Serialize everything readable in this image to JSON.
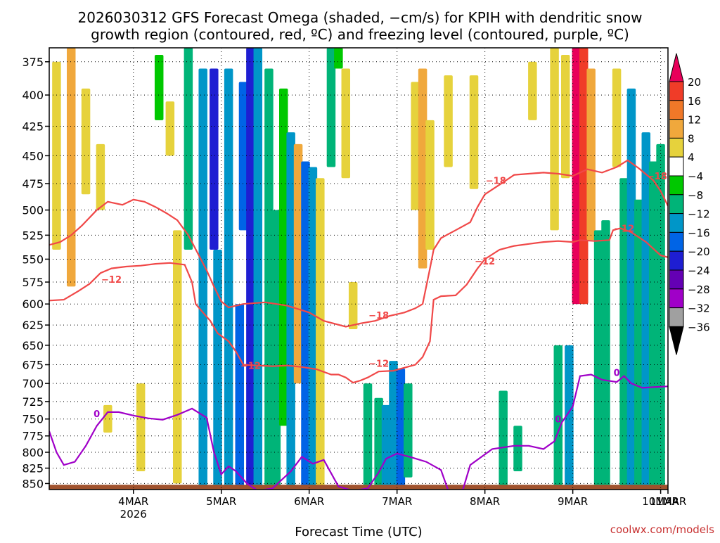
{
  "chart_data": {
    "type": "heatmap",
    "title": "2026030312 GFS Forecast Omega (shaded, −cm/s) for KPIH with dendritic snow",
    "subtitle": "growth region (contoured, red, ºC) and freezing level (contoured, purple, ºC)",
    "xlabel": "Forecast Time (UTC)",
    "ylabel": "",
    "credit": "coolwx.com/models",
    "y_axis": {
      "scale": "pressure",
      "range": [
        860,
        365
      ],
      "ticks": [
        "375",
        "400",
        "425",
        "450",
        "475",
        "500",
        "525",
        "550",
        "575",
        "600",
        "625",
        "650",
        "675",
        "700",
        "725",
        "750",
        "775",
        "800",
        "825",
        "850"
      ]
    },
    "x_axis": {
      "range_hours": [
        -11,
        158
      ],
      "ticks": [
        {
          "label": "4MAR",
          "sublabel": "2026",
          "hour": 12
        },
        {
          "label": "5MAR",
          "sublabel": "",
          "hour": 36
        },
        {
          "label": "6MAR",
          "sublabel": "",
          "hour": 60
        },
        {
          "label": "7MAR",
          "sublabel": "",
          "hour": 84
        },
        {
          "label": "8MAR",
          "sublabel": "",
          "hour": 108
        },
        {
          "label": "9MAR",
          "sublabel": "",
          "hour": 132
        },
        {
          "label": "10MAR",
          "sublabel": "",
          "hour": 156
        },
        {
          "label": "11MAR",
          "sublabel": "",
          "hour": 180
        }
      ]
    },
    "grid": true,
    "colorbar": {
      "labels": [
        "20",
        "16",
        "12",
        "8",
        "4",
        "−4",
        "−8",
        "−12",
        "−16",
        "−20",
        "−24",
        "−28",
        "−32",
        "−36"
      ],
      "colors": [
        "#e8005a",
        "#f03c28",
        "#f07828",
        "#f0a83c",
        "#e6d23c",
        "#ffffff",
        "#00c800",
        "#00b478",
        "#0096c8",
        "#0064e6",
        "#1e1ed2",
        "#6400b4",
        "#a000c8",
        "#a0a0a0",
        "#000000"
      ]
    },
    "omega_bands": [
      {
        "hour": -9,
        "top": 375,
        "bottom": 540,
        "value": 6
      },
      {
        "hour": -5,
        "top": 365,
        "bottom": 580,
        "value": 10
      },
      {
        "hour": -1,
        "top": 395,
        "bottom": 485,
        "value": 5
      },
      {
        "hour": 3,
        "top": 440,
        "bottom": 500,
        "value": 6
      },
      {
        "hour": 5,
        "top": 730,
        "bottom": 770,
        "value": 5
      },
      {
        "hour": 14,
        "top": 700,
        "bottom": 830,
        "value": 4
      },
      {
        "hour": 19,
        "top": 370,
        "bottom": 420,
        "value": -6
      },
      {
        "hour": 22,
        "top": 405,
        "bottom": 450,
        "value": 5
      },
      {
        "hour": 24,
        "top": 520,
        "bottom": 850,
        "value": 5
      },
      {
        "hour": 27,
        "top": 365,
        "bottom": 540,
        "value": -8
      },
      {
        "hour": 31,
        "top": 380,
        "bottom": 860,
        "value": -12
      },
      {
        "hour": 34,
        "top": 380,
        "bottom": 540,
        "value": -22
      },
      {
        "hour": 35,
        "top": 540,
        "bottom": 860,
        "value": -14
      },
      {
        "hour": 38,
        "top": 380,
        "bottom": 860,
        "value": -14
      },
      {
        "hour": 41,
        "top": 600,
        "bottom": 860,
        "value": -18
      },
      {
        "hour": 42,
        "top": 390,
        "bottom": 520,
        "value": -18
      },
      {
        "hour": 44,
        "top": 365,
        "bottom": 860,
        "value": -22
      },
      {
        "hour": 46,
        "top": 365,
        "bottom": 860,
        "value": -14
      },
      {
        "hour": 49,
        "top": 380,
        "bottom": 860,
        "value": -10
      },
      {
        "hour": 51,
        "top": 500,
        "bottom": 860,
        "value": -8
      },
      {
        "hour": 53,
        "top": 395,
        "bottom": 760,
        "value": -6
      },
      {
        "hour": 55,
        "top": 430,
        "bottom": 860,
        "value": -12
      },
      {
        "hour": 57,
        "top": 440,
        "bottom": 700,
        "value": 8
      },
      {
        "hour": 59,
        "top": 455,
        "bottom": 860,
        "value": -16
      },
      {
        "hour": 61,
        "top": 460,
        "bottom": 860,
        "value": -12
      },
      {
        "hour": 63,
        "top": 470,
        "bottom": 860,
        "value": 6
      },
      {
        "hour": 66,
        "top": 365,
        "bottom": 460,
        "value": -8
      },
      {
        "hour": 68,
        "top": 365,
        "bottom": 380,
        "value": -6
      },
      {
        "hour": 70,
        "top": 380,
        "bottom": 470,
        "value": 6
      },
      {
        "hour": 72,
        "top": 575,
        "bottom": 630,
        "value": 5
      },
      {
        "hour": 76,
        "top": 700,
        "bottom": 860,
        "value": -8
      },
      {
        "hour": 79,
        "top": 720,
        "bottom": 860,
        "value": -10
      },
      {
        "hour": 81,
        "top": 730,
        "bottom": 860,
        "value": -12
      },
      {
        "hour": 83,
        "top": 670,
        "bottom": 860,
        "value": -14
      },
      {
        "hour": 85,
        "top": 680,
        "bottom": 860,
        "value": -18
      },
      {
        "hour": 87,
        "top": 700,
        "bottom": 840,
        "value": -10
      },
      {
        "hour": 89,
        "top": 390,
        "bottom": 500,
        "value": 6
      },
      {
        "hour": 91,
        "top": 380,
        "bottom": 560,
        "value": 10
      },
      {
        "hour": 93,
        "top": 420,
        "bottom": 540,
        "value": 5
      },
      {
        "hour": 98,
        "top": 385,
        "bottom": 460,
        "value": 5
      },
      {
        "hour": 105,
        "top": 385,
        "bottom": 480,
        "value": 5
      },
      {
        "hour": 113,
        "top": 710,
        "bottom": 860,
        "value": -8
      },
      {
        "hour": 117,
        "top": 760,
        "bottom": 830,
        "value": -8
      },
      {
        "hour": 121,
        "top": 375,
        "bottom": 420,
        "value": 5
      },
      {
        "hour": 127,
        "top": 365,
        "bottom": 520,
        "value": 5
      },
      {
        "hour": 128,
        "top": 650,
        "bottom": 860,
        "value": -10
      },
      {
        "hour": 130,
        "top": 370,
        "bottom": 470,
        "value": 5
      },
      {
        "hour": 131,
        "top": 650,
        "bottom": 860,
        "value": -14
      },
      {
        "hour": 133,
        "top": 365,
        "bottom": 600,
        "value": 20
      },
      {
        "hour": 135,
        "top": 365,
        "bottom": 600,
        "value": 16
      },
      {
        "hour": 137,
        "top": 380,
        "bottom": 530,
        "value": 8
      },
      {
        "hour": 139,
        "top": 520,
        "bottom": 860,
        "value": -8
      },
      {
        "hour": 141,
        "top": 510,
        "bottom": 860,
        "value": -8
      },
      {
        "hour": 144,
        "top": 380,
        "bottom": 460,
        "value": 5
      },
      {
        "hour": 146,
        "top": 470,
        "bottom": 860,
        "value": -10
      },
      {
        "hour": 148,
        "top": 395,
        "bottom": 860,
        "value": -12
      },
      {
        "hour": 150,
        "top": 490,
        "bottom": 860,
        "value": -10
      },
      {
        "hour": 152,
        "top": 430,
        "bottom": 860,
        "value": -12
      },
      {
        "hour": 154,
        "top": 455,
        "bottom": 860,
        "value": -8
      },
      {
        "hour": 156,
        "top": 440,
        "bottom": 860,
        "value": -10
      }
    ],
    "ground_level": 852,
    "series": [
      {
        "label": "−12",
        "color": "#f04848",
        "label_points": [
          [
            6,
            572
          ],
          [
            44,
            676
          ],
          [
            79,
            673
          ],
          [
            108,
            552
          ],
          [
            146,
            518
          ]
        ],
        "points": [
          [
            -11,
            596
          ],
          [
            -7,
            595
          ],
          [
            -3,
            585
          ],
          [
            0,
            577
          ],
          [
            3,
            565
          ],
          [
            6,
            560
          ],
          [
            10,
            558
          ],
          [
            14,
            557
          ],
          [
            18,
            555
          ],
          [
            22,
            554
          ],
          [
            26,
            556
          ],
          [
            28,
            575
          ],
          [
            29,
            600
          ],
          [
            31,
            610
          ],
          [
            33,
            620
          ],
          [
            35,
            635
          ],
          [
            38,
            645
          ],
          [
            40,
            658
          ],
          [
            42,
            675
          ],
          [
            46,
            676
          ],
          [
            50,
            677
          ],
          [
            54,
            676
          ],
          [
            58,
            678
          ],
          [
            62,
            681
          ],
          [
            66,
            688
          ],
          [
            68,
            688
          ],
          [
            70,
            692
          ],
          [
            72,
            699
          ],
          [
            74,
            696
          ],
          [
            76,
            692
          ],
          [
            79,
            684
          ],
          [
            83,
            683
          ],
          [
            89,
            675
          ],
          [
            91,
            665
          ],
          [
            93,
            645
          ],
          [
            94,
            595
          ],
          [
            96,
            591
          ],
          [
            100,
            590
          ],
          [
            103,
            578
          ],
          [
            106,
            560
          ],
          [
            108,
            550
          ],
          [
            112,
            540
          ],
          [
            116,
            536
          ],
          [
            120,
            534
          ],
          [
            124,
            532
          ],
          [
            128,
            531
          ],
          [
            132,
            532
          ],
          [
            134,
            530
          ],
          [
            138,
            531
          ],
          [
            142,
            530
          ],
          [
            143,
            520
          ],
          [
            145,
            518
          ],
          [
            148,
            522
          ],
          [
            152,
            532
          ],
          [
            156,
            546
          ],
          [
            158,
            548
          ]
        ]
      },
      {
        "label": "−18",
        "color": "#f04848",
        "label_points": [
          [
            79,
            613
          ],
          [
            111,
            472
          ],
          [
            155,
            468
          ]
        ],
        "points": [
          [
            -11,
            535
          ],
          [
            -8,
            532
          ],
          [
            -5,
            525
          ],
          [
            -2,
            515
          ],
          [
            2,
            500
          ],
          [
            5,
            492
          ],
          [
            9,
            495
          ],
          [
            12,
            490
          ],
          [
            15,
            492
          ],
          [
            18,
            497
          ],
          [
            21,
            503
          ],
          [
            24,
            510
          ],
          [
            27,
            525
          ],
          [
            30,
            547
          ],
          [
            32,
            562
          ],
          [
            34,
            580
          ],
          [
            36,
            597
          ],
          [
            38,
            604
          ],
          [
            42,
            600
          ],
          [
            48,
            598
          ],
          [
            54,
            602
          ],
          [
            60,
            610
          ],
          [
            64,
            620
          ],
          [
            70,
            627
          ],
          [
            74,
            623
          ],
          [
            78,
            620
          ],
          [
            82,
            614
          ],
          [
            86,
            610
          ],
          [
            89,
            605
          ],
          [
            91,
            600
          ],
          [
            93,
            560
          ],
          [
            94,
            540
          ],
          [
            96,
            528
          ],
          [
            100,
            520
          ],
          [
            104,
            512
          ],
          [
            106,
            497
          ],
          [
            108,
            485
          ],
          [
            112,
            476
          ],
          [
            116,
            467
          ],
          [
            120,
            466
          ],
          [
            124,
            465
          ],
          [
            128,
            466
          ],
          [
            132,
            468
          ],
          [
            136,
            462
          ],
          [
            140,
            465
          ],
          [
            144,
            460
          ],
          [
            147,
            454
          ],
          [
            150,
            461
          ],
          [
            154,
            472
          ],
          [
            156,
            482
          ],
          [
            158,
            496
          ]
        ]
      },
      {
        "label": "0",
        "color": "#a000c8",
        "label_points": [
          [
            2,
            742
          ],
          [
            128,
            750
          ],
          [
            144,
            685
          ]
        ],
        "points": [
          [
            -11,
            768
          ],
          [
            -9,
            800
          ],
          [
            -7,
            820
          ],
          [
            -4,
            815
          ],
          [
            -1,
            790
          ],
          [
            2,
            760
          ],
          [
            5,
            740
          ],
          [
            8,
            740
          ],
          [
            12,
            745
          ],
          [
            16,
            749
          ],
          [
            20,
            751
          ],
          [
            24,
            744
          ],
          [
            28,
            735
          ],
          [
            32,
            748
          ],
          [
            34,
            800
          ],
          [
            36,
            835
          ],
          [
            38,
            822
          ],
          [
            40,
            830
          ],
          [
            43,
            850
          ],
          [
            46,
            862
          ],
          [
            50,
            858
          ],
          [
            55,
            830
          ],
          [
            58,
            807
          ],
          [
            61,
            818
          ],
          [
            64,
            812
          ],
          [
            68,
            855
          ],
          [
            72,
            862
          ],
          [
            76,
            858
          ],
          [
            79,
            832
          ],
          [
            81,
            810
          ],
          [
            84,
            802
          ],
          [
            88,
            808
          ],
          [
            92,
            815
          ],
          [
            96,
            828
          ],
          [
            98,
            862
          ],
          [
            102,
            860
          ],
          [
            104,
            820
          ],
          [
            110,
            795
          ],
          [
            116,
            790
          ],
          [
            120,
            790
          ],
          [
            124,
            795
          ],
          [
            127,
            783
          ],
          [
            129,
            755
          ],
          [
            132,
            732
          ],
          [
            134,
            690
          ],
          [
            137,
            688
          ],
          [
            140,
            695
          ],
          [
            144,
            698
          ],
          [
            146,
            690
          ],
          [
            148,
            700
          ],
          [
            151,
            706
          ],
          [
            154,
            705
          ],
          [
            158,
            704
          ]
        ]
      }
    ]
  }
}
